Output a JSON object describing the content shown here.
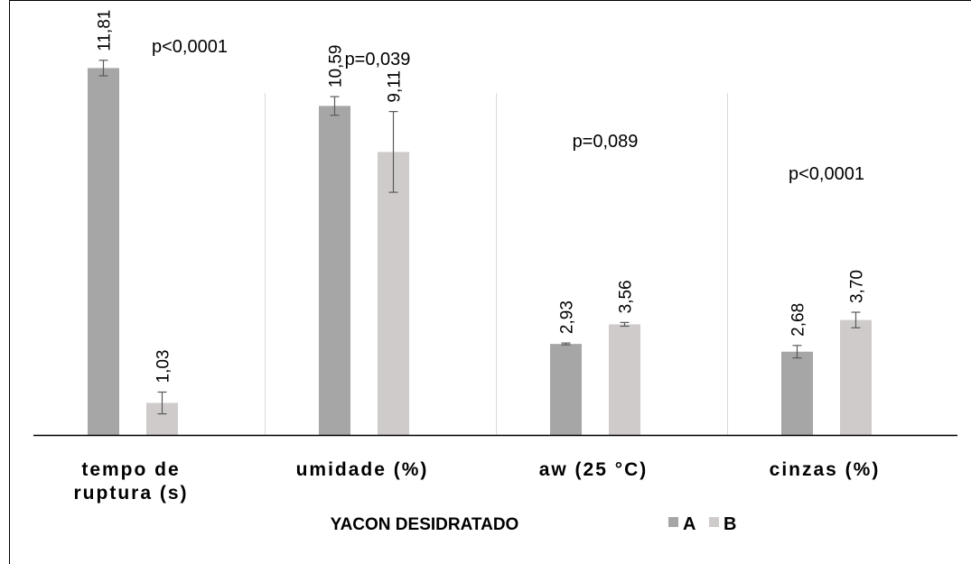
{
  "chart_data": {
    "type": "bar",
    "categories": [
      "tempo de ruptura (s)",
      "umidade (%)",
      "aw (25 °C)",
      "cinzas (%)"
    ],
    "category_lines": [
      [
        "tempo de",
        "ruptura (s)"
      ],
      [
        "umidade (%)"
      ],
      [
        "aw (25 °C)"
      ],
      [
        "cinzas (%)"
      ]
    ],
    "series": [
      {
        "name": "A",
        "color": "#a6a6a6",
        "values": [
          11.81,
          10.59,
          2.93,
          2.68
        ],
        "labels": [
          "11,81",
          "10,59",
          "2,93",
          "2,68"
        ],
        "errors": [
          0.25,
          0.3,
          0.03,
          0.2
        ]
      },
      {
        "name": "B",
        "color": "#cfcbcb",
        "values": [
          1.03,
          9.11,
          3.56,
          3.7
        ],
        "labels": [
          "1,03",
          "9,11",
          "3,56",
          "3,70"
        ],
        "errors": [
          0.35,
          1.3,
          0.06,
          0.25
        ]
      }
    ],
    "annotations": [
      "p<0,0001",
      "p=0,039",
      "p=0,089",
      "p<0,0001"
    ],
    "legend_title": "YACON DESIDRATADO",
    "legend_position": "bottom",
    "ylim": [
      0,
      14
    ],
    "gridlines": "vertical-category-separators",
    "axis_color": "#000000",
    "grid_color": "#d9d9d9",
    "text_color": "#000000"
  }
}
